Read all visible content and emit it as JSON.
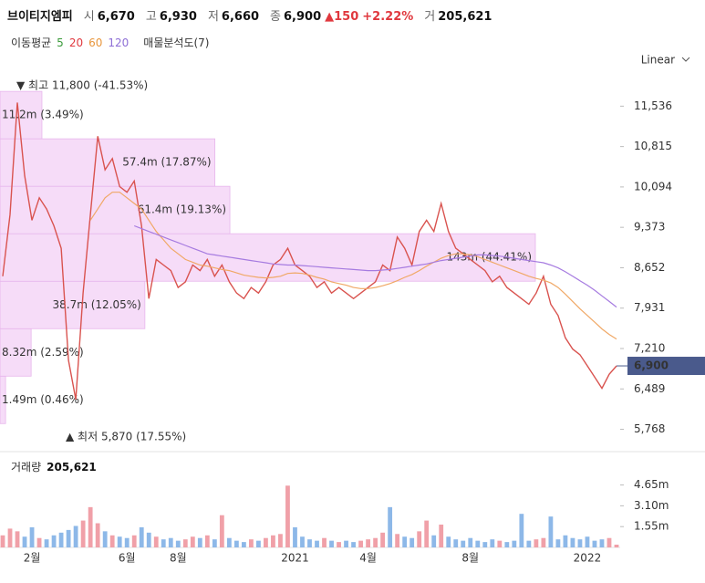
{
  "header": {
    "name": "브이티지엠피",
    "quote": [
      {
        "label": "시",
        "value": "6,670"
      },
      {
        "label": "고",
        "value": "6,930"
      },
      {
        "label": "저",
        "value": "6,660"
      },
      {
        "label": "종",
        "value": "6,900"
      }
    ],
    "change": "▲150",
    "change_pct": "+2.22%",
    "volume_label": "거",
    "volume": "205,621"
  },
  "indicators": {
    "label": "이동평균",
    "periods": [
      {
        "text": "5",
        "color": "#3a9a3a"
      },
      {
        "text": "20",
        "color": "#e0383e"
      },
      {
        "text": "60",
        "color": "#e8963c"
      },
      {
        "text": "120",
        "color": "#8e6fd6"
      }
    ],
    "profile": "매물분석도(7)"
  },
  "scale_mode": "Linear",
  "chart_data": [
    {
      "type": "line",
      "ylim": [
        5500,
        11900
      ],
      "yticks": [
        {
          "value": 5768,
          "label": "5,768"
        },
        {
          "value": 6489,
          "label": "6,489"
        },
        {
          "value": 7210,
          "label": "7,210"
        },
        {
          "value": 7931,
          "label": "7,931"
        },
        {
          "value": 8652,
          "label": "8,652"
        },
        {
          "value": 9373,
          "label": "9,373"
        },
        {
          "value": 10094,
          "label": "10,094"
        },
        {
          "value": 10815,
          "label": "10,815"
        },
        {
          "value": 11536,
          "label": "11,536"
        }
      ],
      "grid": false,
      "series": [
        {
          "color": "#d9534f",
          "values": [
            8500,
            9600,
            11600,
            10300,
            9500,
            9900,
            9700,
            9400,
            9000,
            7000,
            6300,
            8200,
            9600,
            11000,
            10400,
            10600,
            10100,
            10000,
            10200,
            9400,
            8100,
            8800,
            8700,
            8600,
            8300,
            8400,
            8700,
            8600,
            8800,
            8500,
            8700,
            8400,
            8200,
            8100,
            8300,
            8200,
            8400,
            8700,
            8800,
            9000,
            8700,
            8600,
            8500,
            8300,
            8400,
            8200,
            8300,
            8200,
            8100,
            8200,
            8300,
            8400,
            8700,
            8600,
            9200,
            9000,
            8700,
            9300,
            9500,
            9300,
            9800,
            9300,
            9000,
            8900,
            8800,
            8700,
            8600,
            8400,
            8500,
            8300,
            8200,
            8100,
            8000,
            8200,
            8500,
            8000,
            7800,
            7400,
            7200,
            7100,
            6900,
            6700,
            6500,
            6750,
            6900
          ]
        },
        {
          "name": "60",
          "color": "#f0a866",
          "values": [
            null,
            null,
            null,
            null,
            null,
            null,
            null,
            null,
            null,
            null,
            null,
            null,
            9500,
            9700,
            9900,
            10000,
            10000,
            9900,
            9800,
            9700,
            9500,
            9300,
            9150,
            9000,
            8900,
            8800,
            8750,
            8700,
            8680,
            8650,
            8620,
            8600,
            8560,
            8520,
            8500,
            8480,
            8470,
            8480,
            8500,
            8550,
            8560,
            8550,
            8520,
            8480,
            8450,
            8400,
            8370,
            8340,
            8300,
            8280,
            8280,
            8300,
            8330,
            8370,
            8420,
            8480,
            8530,
            8600,
            8680,
            8750,
            8820,
            8870,
            8900,
            8900,
            8880,
            8850,
            8800,
            8750,
            8700,
            8650,
            8600,
            8550,
            8500,
            8460,
            8430,
            8380,
            8300,
            8180,
            8050,
            7920,
            7800,
            7680,
            7560,
            7460,
            7380
          ]
        },
        {
          "name": "120",
          "color": "#a67be0",
          "values": [
            null,
            null,
            null,
            null,
            null,
            null,
            null,
            null,
            null,
            null,
            null,
            null,
            null,
            null,
            null,
            null,
            null,
            null,
            9400,
            9350,
            9300,
            9250,
            9200,
            9150,
            9100,
            9050,
            9000,
            8950,
            8900,
            8880,
            8860,
            8840,
            8820,
            8800,
            8780,
            8760,
            8740,
            8720,
            8710,
            8700,
            8700,
            8690,
            8680,
            8670,
            8660,
            8650,
            8640,
            8630,
            8620,
            8610,
            8600,
            8600,
            8610,
            8620,
            8640,
            8660,
            8680,
            8700,
            8720,
            8750,
            8780,
            8800,
            8820,
            8840,
            8860,
            8880,
            8880,
            8870,
            8860,
            8840,
            8820,
            8800,
            8780,
            8760,
            8740,
            8700,
            8650,
            8580,
            8500,
            8420,
            8340,
            8250,
            8150,
            8050,
            7950
          ]
        }
      ],
      "last": {
        "value": 6900,
        "label": "6,900",
        "color": "#4a5a8c"
      },
      "annotations": [
        "▼ 최고 11,800 (-41.53%)",
        "▲ 최저 5,870 (17.55%)"
      ],
      "profile": {
        "bins": [
          5870,
          6717,
          7564,
          8411,
          9259,
          10106,
          10953,
          11800
        ],
        "values": [
          1490000,
          8320000,
          38700000,
          143000000,
          61400000,
          57400000,
          11200000
        ],
        "value_labels": [
          "1.49m (0.46%)",
          "8.32m (2.59%)",
          "38.7m (12.05%)",
          "143m (44.41%)",
          "61.4m (19.13%)",
          "57.4m (17.87%)",
          "11.2m (3.49%)"
        ],
        "color": "#f6dcf8"
      }
    },
    {
      "type": "bar",
      "title": "거래량",
      "title_value": "205,621",
      "categories": [
        null,
        null,
        null,
        null,
        "2월",
        null,
        null,
        null,
        null,
        null,
        null,
        null,
        null,
        null,
        null,
        null,
        null,
        "6월",
        null,
        null,
        null,
        null,
        null,
        null,
        "8월",
        null,
        null,
        null,
        null,
        null,
        null,
        null,
        null,
        null,
        null,
        null,
        null,
        null,
        null,
        null,
        "2021",
        null,
        null,
        null,
        null,
        null,
        null,
        null,
        null,
        null,
        "4월",
        null,
        null,
        null,
        null,
        null,
        null,
        null,
        null,
        null,
        null,
        null,
        null,
        null,
        "8월",
        null,
        null,
        null,
        null,
        null,
        null,
        null,
        null,
        null,
        null,
        null,
        null,
        null,
        null,
        null,
        "2022",
        null,
        null,
        null,
        null
      ],
      "values": [
        900000,
        1400000,
        1200000,
        800000,
        1500000,
        700000,
        600000,
        900000,
        1100000,
        1300000,
        1600000,
        2000000,
        3000000,
        1800000,
        1200000,
        900000,
        800000,
        700000,
        900000,
        1500000,
        1100000,
        800000,
        600000,
        700000,
        500000,
        600000,
        800000,
        700000,
        900000,
        600000,
        2400000,
        700000,
        500000,
        400000,
        600000,
        500000,
        700000,
        900000,
        1000000,
        4600000,
        1500000,
        800000,
        600000,
        500000,
        700000,
        500000,
        400000,
        500000,
        400000,
        500000,
        600000,
        700000,
        1100000,
        3000000,
        1000000,
        800000,
        700000,
        1200000,
        2000000,
        900000,
        1700000,
        800000,
        600000,
        500000,
        700000,
        500000,
        400000,
        600000,
        500000,
        400000,
        500000,
        2500000,
        500000,
        600000,
        700000,
        2300000,
        600000,
        900000,
        700000,
        600000,
        800000,
        500000,
        600000,
        700000,
        205621
      ],
      "ylim": [
        0,
        5300000
      ],
      "yticks": [
        {
          "value": 1550000,
          "label": "1.55m"
        },
        {
          "value": 3100000,
          "label": "3.10m"
        },
        {
          "value": 4650000,
          "label": "4.65m"
        }
      ],
      "up_color": "#f0a0a8",
      "down_color": "#8db8e8"
    }
  ]
}
